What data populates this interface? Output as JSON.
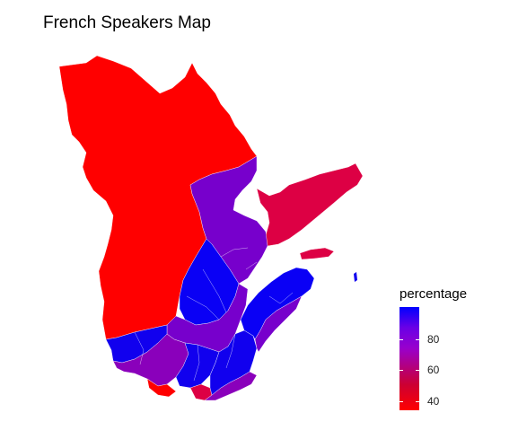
{
  "title": "French Speakers Map",
  "legend": {
    "title": "percentage",
    "ticks": [
      {
        "label": "80",
        "value": 80
      },
      {
        "label": "60",
        "value": 60
      },
      {
        "label": "40",
        "value": 40
      }
    ],
    "range": [
      35,
      100
    ],
    "low_color": "#ff0000",
    "high_color": "#0000ff"
  },
  "colors": {
    "red": "#ff0000",
    "crimson": "#dd0044",
    "purple": "#7700cc",
    "violet": "#8a00bb",
    "blue": "#1100ee",
    "deep_blue": "#0a00f5",
    "magenta": "#b0007a"
  }
}
